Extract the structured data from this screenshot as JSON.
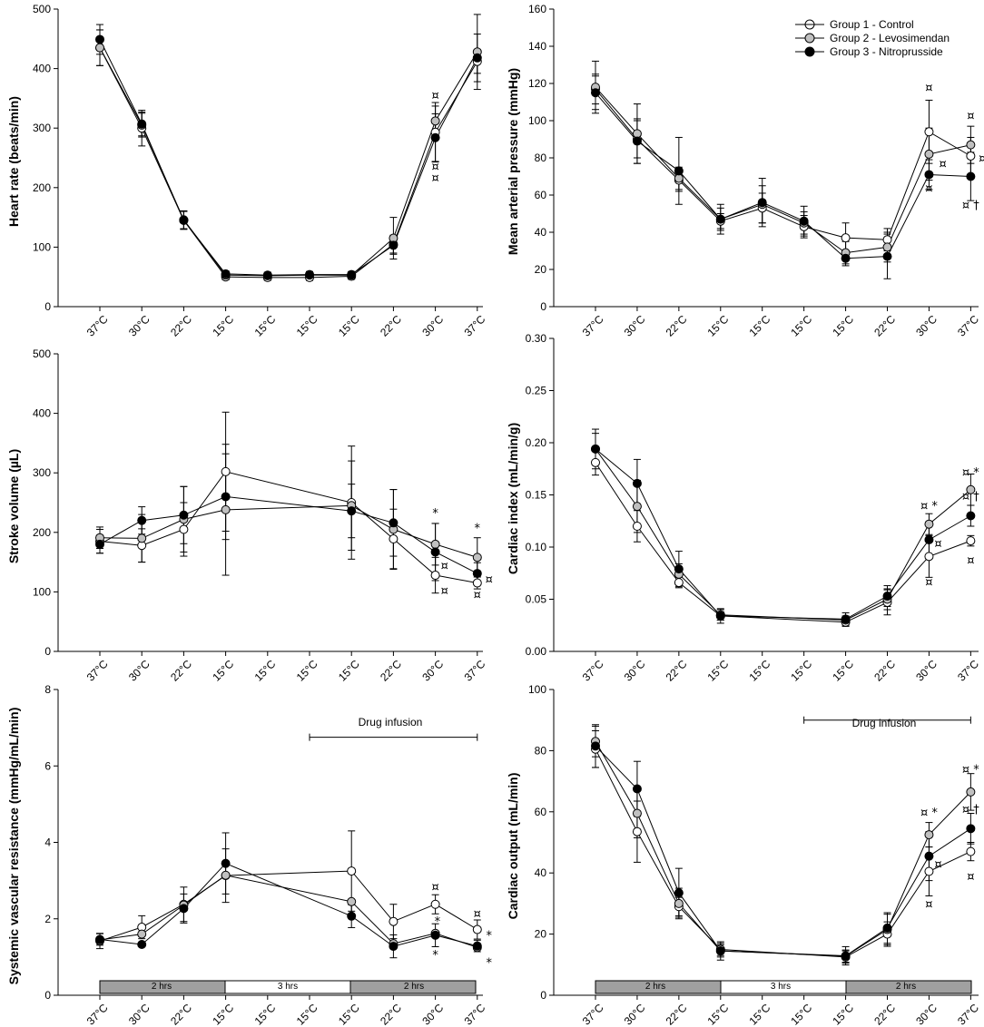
{
  "x_categories": [
    "37°C",
    "30°C",
    "22°C",
    "15°C",
    "15°C",
    "15°C",
    "15°C",
    "22°C",
    "30°C",
    "37°C"
  ],
  "legend": [
    {
      "name": "Group 1 - Control",
      "color": "#ffffff"
    },
    {
      "name": "Group 2 - Levosimendan",
      "color": "#c0c0c0"
    },
    {
      "name": "Group 3 - Nitroprusside",
      "color": "#000000"
    }
  ],
  "phase_bars": [
    {
      "label": "2 hrs",
      "color": "#a0a0a0"
    },
    {
      "label": "3 hrs",
      "color": "#ffffff"
    },
    {
      "label": "2 hrs",
      "color": "#a0a0a0"
    }
  ],
  "drug_infusion_label": "Drug infusion",
  "chart_data": [
    {
      "type": "line",
      "ylabel": "Heart rate (beats/min)",
      "ylim": [
        0,
        500
      ],
      "yticks": [
        0,
        100,
        200,
        300,
        400,
        500
      ],
      "series": [
        {
          "name": "Group 1 - Control",
          "x": [
            0,
            1,
            2,
            3,
            4,
            5,
            6,
            7,
            8,
            9
          ],
          "values": [
            435,
            300,
            145,
            50,
            49,
            49,
            51,
            105,
            293,
            412
          ],
          "err": [
            30,
            30,
            15,
            5,
            5,
            5,
            5,
            15,
            50,
            20
          ]
        },
        {
          "name": "Group 2 - Levosimendan",
          "x": [
            0,
            1,
            2,
            3,
            4,
            5,
            6,
            7,
            8,
            9
          ],
          "values": [
            435,
            305,
            146,
            53,
            52,
            53,
            53,
            115,
            312,
            428
          ],
          "err": [
            30,
            20,
            15,
            5,
            5,
            5,
            5,
            35,
            25,
            63
          ]
        },
        {
          "name": "Group 3 - Nitroprusside",
          "x": [
            0,
            1,
            2,
            3,
            4,
            5,
            6,
            7,
            8,
            9
          ],
          "values": [
            449,
            307,
            145,
            55,
            53,
            54,
            54,
            103,
            284,
            418
          ],
          "err": [
            25,
            20,
            15,
            5,
            5,
            5,
            5,
            15,
            40,
            40
          ]
        }
      ],
      "annotations": [
        {
          "x": 8,
          "y": 356,
          "text": "¤"
        },
        {
          "x": 8,
          "y": 236,
          "text": "¤"
        },
        {
          "x": 8,
          "y": 217,
          "text": "¤"
        }
      ]
    },
    {
      "type": "line",
      "ylabel": "Mean arterial pressure (mmHg)",
      "ylim": [
        0,
        160
      ],
      "yticks": [
        0,
        20,
        40,
        60,
        80,
        100,
        120,
        140,
        160
      ],
      "legend_position": "top-right",
      "series": [
        {
          "name": "Group 1 - Control",
          "x": [
            0,
            1,
            2,
            3,
            4,
            5,
            6,
            7,
            8,
            9
          ],
          "values": [
            117,
            90,
            68,
            46,
            53,
            43,
            37,
            36,
            94,
            81
          ],
          "err": [
            8,
            10,
            6,
            4,
            8,
            6,
            8,
            6,
            17,
            10
          ]
        },
        {
          "name": "Group 2 - Levosimendan",
          "x": [
            0,
            1,
            2,
            3,
            4,
            5,
            6,
            7,
            8,
            9
          ],
          "values": [
            118,
            93,
            69,
            47,
            55,
            45,
            29,
            32,
            82,
            87
          ],
          "err": [
            14,
            16,
            6,
            6,
            10,
            6,
            6,
            8,
            14,
            10
          ]
        },
        {
          "name": "Group 3 - Nitroprusside",
          "x": [
            0,
            1,
            2,
            3,
            4,
            5,
            6,
            7,
            8,
            9
          ],
          "values": [
            115,
            89,
            73,
            47,
            56,
            46,
            26,
            27,
            71,
            70
          ],
          "err": [
            9,
            12,
            18,
            8,
            13,
            8,
            4,
            12,
            8,
            13
          ]
        }
      ],
      "annotations": [
        {
          "x": 8,
          "y": 118,
          "text": "¤"
        },
        {
          "x": 9,
          "y": 103,
          "text": "¤"
        },
        {
          "x": 9.28,
          "y": 80,
          "text": "¤"
        },
        {
          "x": 8.33,
          "y": 77,
          "text": "¤"
        },
        {
          "x": 8,
          "y": 64,
          "text": "¤"
        },
        {
          "x": 9,
          "y": 55,
          "text": "¤ †"
        }
      ]
    },
    {
      "type": "line",
      "ylabel": "Stroke volume (µL)",
      "ylim": [
        0,
        500
      ],
      "yticks": [
        0,
        100,
        200,
        300,
        400,
        500
      ],
      "series": [
        {
          "name": "Group 1 - Control",
          "x": [
            0,
            1,
            2,
            3,
            6,
            7,
            8,
            9
          ],
          "values": [
            185,
            178,
            205,
            302,
            250,
            189,
            128,
            115
          ],
          "err": [
            20,
            28,
            45,
            100,
            95,
            50,
            30,
            10
          ]
        },
        {
          "name": "Group 2 - Levosimendan",
          "x": [
            0,
            1,
            2,
            3,
            6,
            7,
            8,
            9
          ],
          "values": [
            191,
            190,
            222,
            238,
            245,
            205,
            180,
            158
          ],
          "err": [
            18,
            40,
            55,
            110,
            75,
            67,
            35,
            33
          ]
        },
        {
          "name": "Group 3 - Nitroprusside",
          "x": [
            0,
            1,
            2,
            3,
            6,
            7,
            8,
            9
          ],
          "values": [
            180,
            220,
            229,
            260,
            236,
            216,
            167,
            131
          ],
          "err": [
            15,
            23,
            48,
            72,
            45,
            56,
            48,
            18
          ]
        }
      ],
      "annotations": [
        {
          "x": 8,
          "y": 233,
          "text": "*"
        },
        {
          "x": 9,
          "y": 208,
          "text": "*"
        },
        {
          "x": 8.22,
          "y": 145,
          "text": "¤"
        },
        {
          "x": 9.28,
          "y": 122,
          "text": "¤"
        },
        {
          "x": 8.22,
          "y": 103,
          "text": "¤"
        },
        {
          "x": 9,
          "y": 96,
          "text": "¤"
        }
      ]
    },
    {
      "type": "line",
      "ylabel": "Cardiac index (mL/min/g)",
      "ylim": [
        0,
        0.3
      ],
      "yticks": [
        0,
        0.05,
        0.1,
        0.15,
        0.2,
        0.25,
        0.3
      ],
      "series": [
        {
          "name": "Group 1 - Control",
          "x": [
            0,
            1,
            2,
            3,
            6,
            7,
            8,
            9
          ],
          "values": [
            0.181,
            0.12,
            0.066,
            0.034,
            0.028,
            0.047,
            0.091,
            0.106
          ],
          "err": [
            0.012,
            0.015,
            0.005,
            0.004,
            0.004,
            0.012,
            0.02,
            0.005
          ]
        },
        {
          "name": "Group 2 - Levosimendan",
          "x": [
            0,
            1,
            2,
            3,
            6,
            7,
            8,
            9
          ],
          "values": [
            0.194,
            0.139,
            0.074,
            0.035,
            0.03,
            0.05,
            0.122,
            0.155
          ],
          "err": [
            0.015,
            0.025,
            0.01,
            0.005,
            0.004,
            0.01,
            0.01,
            0.015
          ]
        },
        {
          "name": "Group 3 - Nitroprusside",
          "x": [
            0,
            1,
            2,
            3,
            6,
            7,
            8,
            9
          ],
          "values": [
            0.194,
            0.161,
            0.079,
            0.034,
            0.031,
            0.053,
            0.107,
            0.13
          ],
          "err": [
            0.019,
            0.023,
            0.017,
            0.007,
            0.006,
            0.01,
            0.015,
            0.01
          ]
        }
      ],
      "annotations": [
        {
          "x": 8,
          "y": 0.14,
          "text": "¤ *"
        },
        {
          "x": 9,
          "y": 0.172,
          "text": "¤ *"
        },
        {
          "x": 9,
          "y": 0.149,
          "text": "¤ †"
        },
        {
          "x": 8.22,
          "y": 0.104,
          "text": "¤"
        },
        {
          "x": 8,
          "y": 0.067,
          "text": "¤"
        },
        {
          "x": 9,
          "y": 0.088,
          "text": "¤"
        }
      ]
    },
    {
      "type": "line",
      "ylabel": "Systemic vascular resistance (mmHg/mL/min)",
      "ylim": [
        0,
        8
      ],
      "yticks": [
        0,
        2,
        4,
        6,
        8
      ],
      "drug_infusion": {
        "from_x": 5,
        "to_x": 9,
        "y": 6.75
      },
      "series": [
        {
          "name": "Group 1 - Control",
          "x": [
            0,
            1,
            2,
            3,
            6,
            7,
            8,
            9
          ],
          "values": [
            1.42,
            1.78,
            2.38,
            3.13,
            3.25,
            1.93,
            2.38,
            1.72
          ],
          "err": [
            0.2,
            0.3,
            0.45,
            0.7,
            1.05,
            0.45,
            0.25,
            0.25
          ]
        },
        {
          "name": "Group 2 - Levosimendan",
          "x": [
            0,
            1,
            2,
            3,
            6,
            7,
            8,
            9
          ],
          "values": [
            1.45,
            1.6,
            2.36,
            3.14,
            2.45,
            1.35,
            1.62,
            1.25
          ]
        },
        {
          "name": "Group 3 - Nitroprusside",
          "x": [
            0,
            1,
            2,
            3,
            6,
            7,
            8,
            9
          ],
          "values": [
            1.46,
            1.33,
            2.27,
            3.45,
            2.07,
            1.28,
            1.57,
            1.29
          ],
          "err": [
            0.15,
            0.05,
            0.38,
            0.8,
            0.3,
            0.3,
            0.3,
            0.15
          ]
        }
      ],
      "annotations": [
        {
          "x": 8,
          "y": 2.85,
          "text": "¤"
        },
        {
          "x": 9,
          "y": 2.15,
          "text": "¤"
        },
        {
          "x": 8.05,
          "y": 1.95,
          "text": "*"
        },
        {
          "x": 9.28,
          "y": 1.58,
          "text": "*"
        },
        {
          "x": 8,
          "y": 1.07,
          "text": "*"
        },
        {
          "x": 9.28,
          "y": 0.87,
          "text": "*"
        }
      ]
    },
    {
      "type": "line",
      "ylabel": "Cardiac output (mL/min)",
      "ylim": [
        0,
        100
      ],
      "yticks": [
        0,
        20,
        40,
        60,
        80,
        100
      ],
      "drug_infusion": {
        "from_x": 5,
        "to_x": 9,
        "y": 90
      },
      "series": [
        {
          "name": "Group 1 - Control",
          "x": [
            0,
            1,
            2,
            3,
            6,
            7,
            8,
            9
          ],
          "values": [
            80.5,
            53.5,
            29,
            15,
            12.5,
            20,
            40.5,
            47
          ],
          "err": [
            6,
            10,
            3,
            2,
            2,
            4,
            8,
            3
          ]
        },
        {
          "name": "Group 2 - Levosimendan",
          "x": [
            0,
            1,
            2,
            3,
            6,
            7,
            8,
            9
          ],
          "values": [
            83,
            59.5,
            30,
            14.5,
            12.8,
            21.5,
            52.5,
            66.5
          ],
          "err": [
            5,
            8,
            5,
            2,
            2,
            5,
            4,
            6
          ]
        },
        {
          "name": "Group 3 - Nitroprusside",
          "x": [
            0,
            1,
            2,
            3,
            6,
            7,
            8,
            9
          ],
          "values": [
            81.5,
            67.5,
            33.5,
            14.5,
            12.9,
            22,
            45.5,
            54.5
          ],
          "err": [
            7,
            9,
            8,
            3,
            3,
            5,
            8,
            5
          ]
        }
      ],
      "annotations": [
        {
          "x": 8,
          "y": 60,
          "text": "¤ *"
        },
        {
          "x": 9,
          "y": 74,
          "text": "¤ *"
        },
        {
          "x": 9,
          "y": 61,
          "text": "¤ †"
        },
        {
          "x": 8.22,
          "y": 43,
          "text": "¤"
        },
        {
          "x": 8,
          "y": 30,
          "text": "¤"
        },
        {
          "x": 9,
          "y": 39,
          "text": "¤"
        }
      ]
    }
  ]
}
